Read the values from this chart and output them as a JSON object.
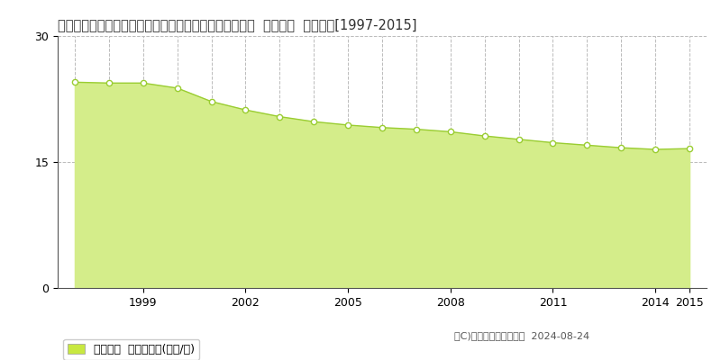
{
  "title": "愛知県名古屋市港区南陽町大字西福田字丸山４３番１外  基準地価  地価推移[1997-2015]",
  "years": [
    1997,
    1998,
    1999,
    2000,
    2001,
    2002,
    2003,
    2004,
    2005,
    2006,
    2007,
    2008,
    2009,
    2010,
    2011,
    2012,
    2013,
    2014,
    2015
  ],
  "values": [
    24.5,
    24.4,
    24.4,
    23.8,
    22.2,
    21.2,
    20.4,
    19.8,
    19.4,
    19.1,
    18.9,
    18.6,
    18.1,
    17.7,
    17.3,
    17.0,
    16.7,
    16.5,
    16.6
  ],
  "ylim": [
    0,
    30
  ],
  "yticks": [
    0,
    15,
    30
  ],
  "xticks": [
    1999,
    2002,
    2005,
    2008,
    2011,
    2014,
    2015
  ],
  "line_color": "#9acd32",
  "fill_color": "#d4ed8a",
  "fill_alpha": 1.0,
  "marker_color": "white",
  "marker_edge_color": "#9acd32",
  "background_color": "#ffffff",
  "grid_color": "#bbbbbb",
  "legend_label": "基準地価  平均坪単価(万円/坪)",
  "copyright_text": "（C)土地価格ドットコム  2024-08-24",
  "title_fontsize": 10.5,
  "axis_fontsize": 9,
  "legend_fontsize": 9,
  "legend_marker_color": "#c8e840"
}
